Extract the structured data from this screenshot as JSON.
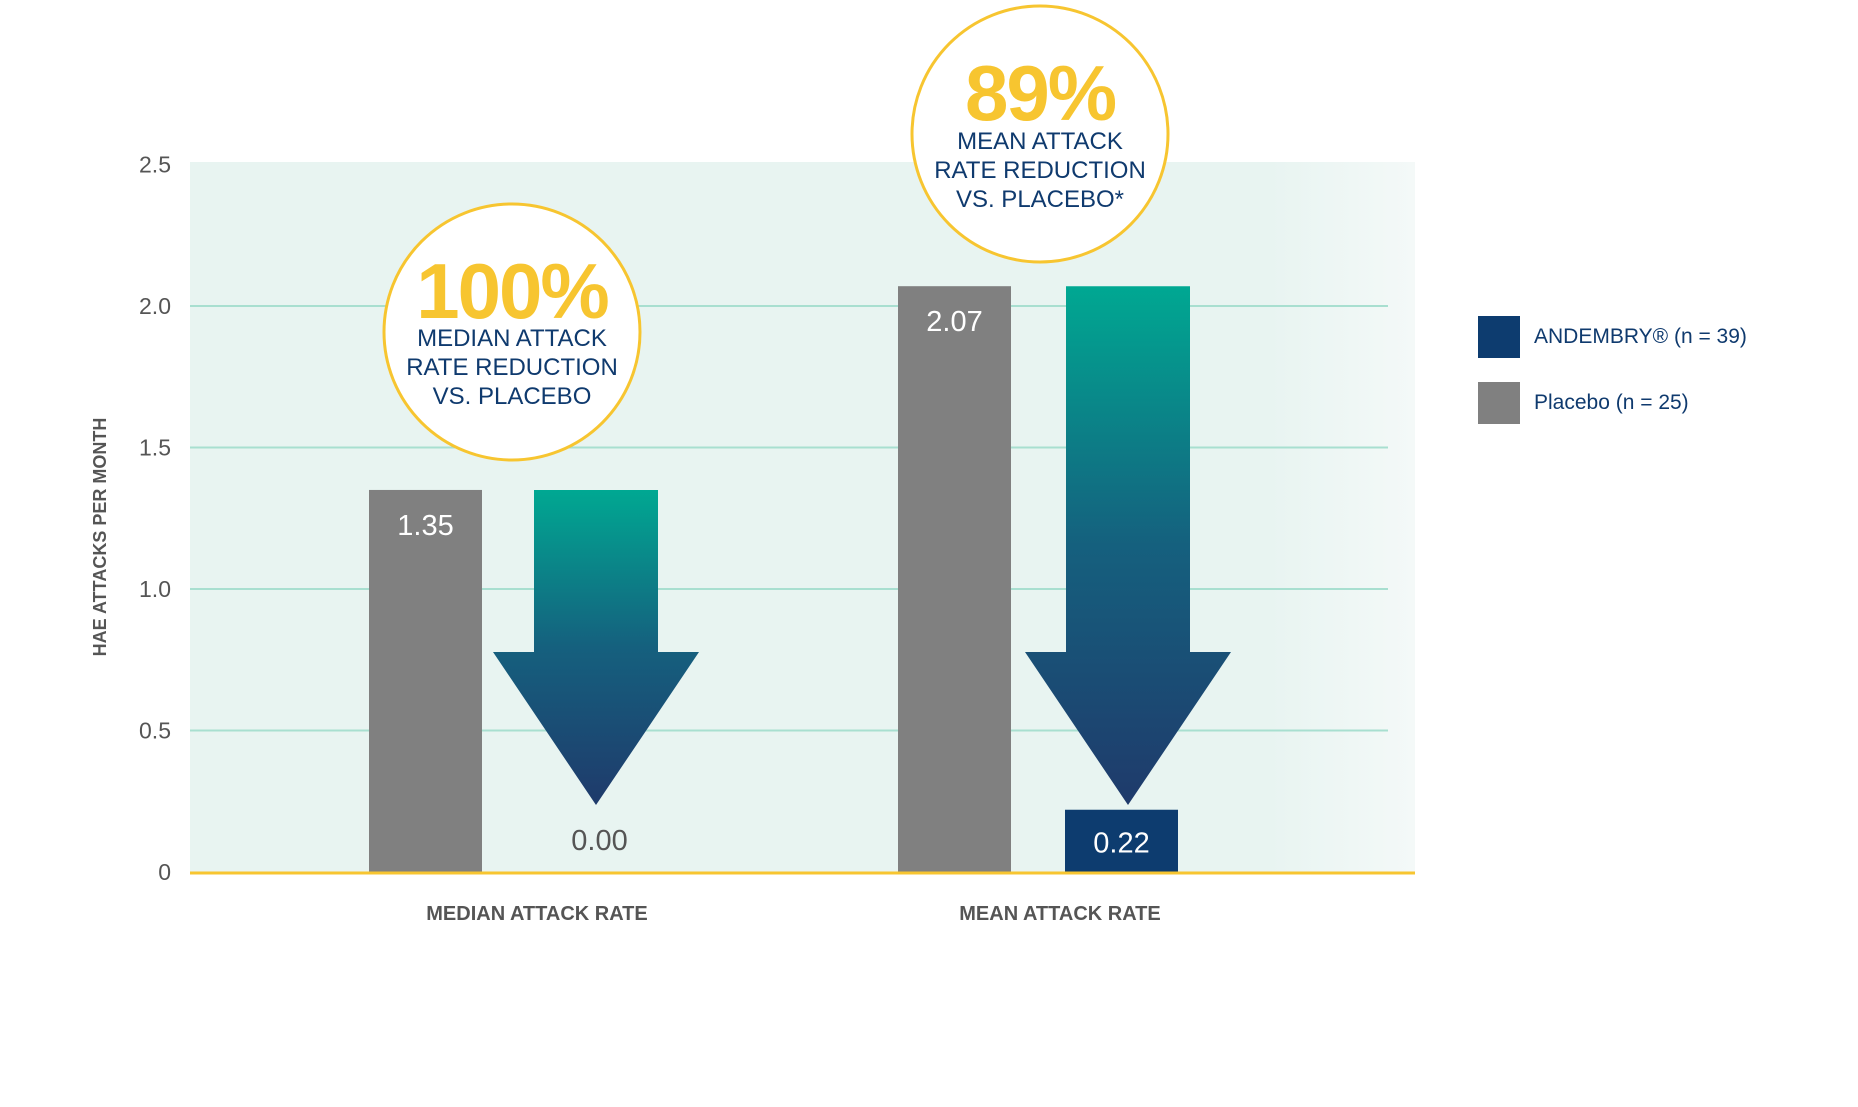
{
  "chart_data": {
    "type": "bar",
    "ylabel": "HAE ATTACKS PER MONTH",
    "ylim": [
      0,
      2.5
    ],
    "yticks": [
      "0",
      "0.5",
      "1.0",
      "1.5",
      "2.0",
      "2.5"
    ],
    "ytick_values": [
      0,
      0.5,
      1.0,
      1.5,
      2.0,
      2.5
    ],
    "categories": [
      "MEDIAN ATTACK RATE",
      "MEAN ATTACK RATE"
    ],
    "series": [
      {
        "name": "Placebo (n = 25)",
        "values": [
          1.35,
          2.07
        ],
        "labels": [
          "1.35",
          "2.07"
        ],
        "color": "#808080"
      },
      {
        "name": "ANDEMBRY® (n = 39)",
        "values": [
          0.0,
          0.22
        ],
        "labels": [
          "0.00",
          "0.22"
        ],
        "color": "#0d3c6f"
      }
    ],
    "arrow_colors": {
      "top": "#00a892",
      "bottom": "#1f3a6b"
    },
    "callouts": [
      {
        "percent": "100%",
        "lines": [
          "MEDIAN ATTACK",
          "RATE REDUCTION",
          "VS. PLACEBO"
        ]
      },
      {
        "percent": "89%",
        "lines": [
          "MEAN ATTACK",
          "RATE REDUCTION",
          "VS. PLACEBO*"
        ]
      }
    ],
    "colors": {
      "callout_accent": "#f7c530",
      "callout_text": "#0f3a6e",
      "gridline": "#a8dfd0",
      "plot_bg": "#e8f4f1",
      "baseline": "#f7c530"
    },
    "grid": true,
    "legend_position": "right"
  },
  "legend": {
    "items": [
      {
        "label": "ANDEMBRY® (n = 39)",
        "color": "#0d3c6f"
      },
      {
        "label": "Placebo (n = 25)",
        "color": "#808080"
      }
    ]
  }
}
